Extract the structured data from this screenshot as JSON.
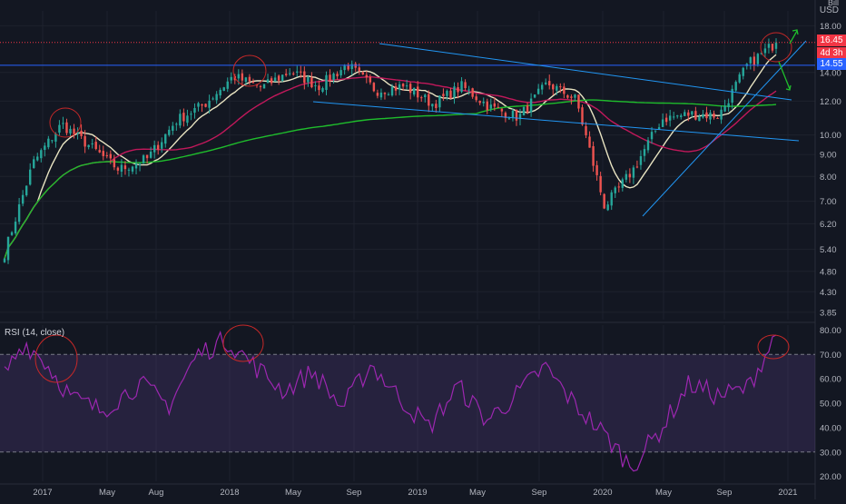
{
  "header": {
    "scale_hint": "Bill",
    "currency": "USD"
  },
  "chart_data": [
    {
      "type": "candlestick",
      "title": "",
      "y_scale": "log",
      "ylim": [
        3.7,
        19.5
      ],
      "y_ticks": [
        "18.00",
        "14.00",
        "12.00",
        "10.00",
        "9.00",
        "8.00",
        "7.00",
        "6.20",
        "5.40",
        "4.80",
        "4.30",
        "3.85"
      ],
      "x_labels": [
        "2017",
        "May",
        "Aug",
        "2018",
        "May",
        "Sep",
        "2019",
        "May",
        "Sep",
        "2020",
        "May",
        "Sep",
        "2021"
      ],
      "tags": [
        {
          "value": "16.45",
          "color": "#f23645"
        },
        {
          "value": "4d 3h",
          "color": "#f23645"
        },
        {
          "value": "14.55",
          "color": "#2962ff"
        }
      ],
      "price_path_ohlc_anchor": [
        [
          "2016-12",
          5.3
        ],
        [
          "2017-01",
          8.6
        ],
        [
          "2017-03",
          10.6
        ],
        [
          "2017-04",
          9.4
        ],
        [
          "2017-06",
          8.3
        ],
        [
          "2017-07",
          8.8
        ],
        [
          "2017-09",
          10.8
        ],
        [
          "2017-11",
          11.8
        ],
        [
          "2018-01",
          13.7
        ],
        [
          "2018-03",
          12.9
        ],
        [
          "2018-05",
          14.1
        ],
        [
          "2018-07",
          13.0
        ],
        [
          "2018-09",
          14.6
        ],
        [
          "2018-11",
          12.7
        ],
        [
          "2019-01",
          13.0
        ],
        [
          "2019-03",
          11.8
        ],
        [
          "2019-05",
          13.0
        ],
        [
          "2019-06",
          11.6
        ],
        [
          "2019-09",
          11.0
        ],
        [
          "2019-12",
          13.2
        ],
        [
          "2020-01",
          12.1
        ],
        [
          "2020-03",
          6.8
        ],
        [
          "2020-04",
          8.3
        ],
        [
          "2020-06",
          10.9
        ],
        [
          "2020-08",
          11.2
        ],
        [
          "2020-10",
          11.1
        ],
        [
          "2020-11",
          14.6
        ],
        [
          "2020-12",
          16.45
        ]
      ],
      "series": [
        {
          "name": "",
          "style": "candles"
        },
        {
          "name": "",
          "style": "ma-fast",
          "color": "#e9e4c2"
        },
        {
          "name": "",
          "style": "ma-mid",
          "color": "#c2185b"
        },
        {
          "name": "",
          "style": "ma-slow",
          "color": "#1fbd2c"
        }
      ],
      "horizontal_levels": [
        {
          "value": 16.45,
          "style": "dotted",
          "color": "#f23645"
        },
        {
          "value": 14.55,
          "style": "solid",
          "color": "#2962ff"
        }
      ]
    },
    {
      "type": "line",
      "title": "RSI (14, close)",
      "ylim": [
        18,
        82
      ],
      "y_ticks": [
        "80.00",
        "70.00",
        "60.00",
        "50.00",
        "40.00",
        "30.00",
        "20.00"
      ],
      "bands": [
        30,
        70
      ],
      "series": [
        {
          "name": "",
          "color": "#9c27b0",
          "anchors": [
            [
              0,
              62
            ],
            [
              4,
              75
            ],
            [
              8,
              68
            ],
            [
              14,
              52
            ],
            [
              20,
              47
            ],
            [
              28,
              58
            ],
            [
              34,
              49
            ],
            [
              40,
              70
            ],
            [
              46,
              76
            ],
            [
              52,
              65
            ],
            [
              58,
              55
            ],
            [
              64,
              63
            ],
            [
              70,
              48
            ],
            [
              76,
              66
            ],
            [
              82,
              52
            ],
            [
              88,
              40
            ],
            [
              94,
              57
            ],
            [
              100,
              43
            ],
            [
              106,
              53
            ],
            [
              112,
              65
            ],
            [
              118,
              50
            ],
            [
              124,
              38
            ],
            [
              130,
              24
            ],
            [
              136,
              39
            ],
            [
              142,
              58
            ],
            [
              148,
              53
            ],
            [
              154,
              56
            ],
            [
              160,
              78
            ]
          ]
        }
      ]
    }
  ]
}
